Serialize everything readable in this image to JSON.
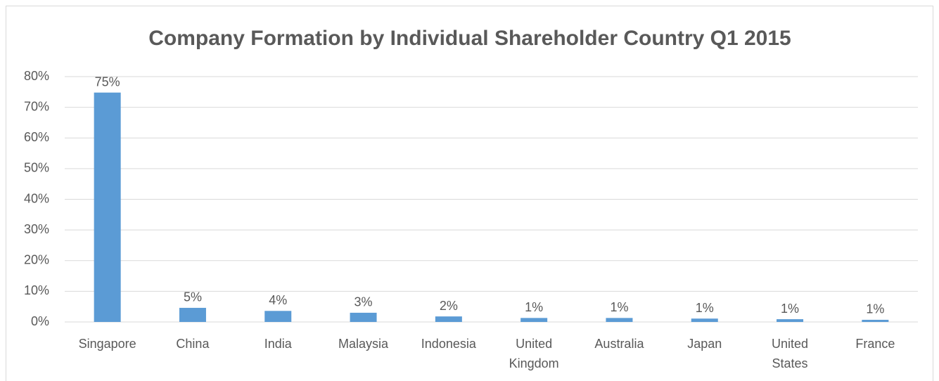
{
  "chart_data": {
    "type": "bar",
    "title": "Company Formation by Individual Shareholder Country Q1 2015",
    "categories": [
      "Singapore",
      "China",
      "India",
      "Malaysia",
      "Indonesia",
      "United Kingdom",
      "Australia",
      "Japan",
      "United States",
      "France"
    ],
    "values": [
      74.8,
      4.6,
      3.6,
      3.0,
      1.8,
      1.3,
      1.3,
      1.1,
      0.9,
      0.7
    ],
    "value_labels": [
      "75%",
      "5%",
      "4%",
      "3%",
      "2%",
      "1%",
      "1%",
      "1%",
      "1%",
      "1%"
    ],
    "color": "#5b9bd5",
    "ylim": [
      0,
      80
    ],
    "yticks": [
      {
        "value": 0,
        "label": "0%"
      },
      {
        "value": 10,
        "label": "10%"
      },
      {
        "value": 20,
        "label": "20%"
      },
      {
        "value": 30,
        "label": "30%"
      },
      {
        "value": 40,
        "label": "40%"
      },
      {
        "value": 50,
        "label": "50%"
      },
      {
        "value": 60,
        "label": "60%"
      },
      {
        "value": 70,
        "label": "70%"
      },
      {
        "value": 80,
        "label": "80%"
      }
    ],
    "grid": true
  }
}
